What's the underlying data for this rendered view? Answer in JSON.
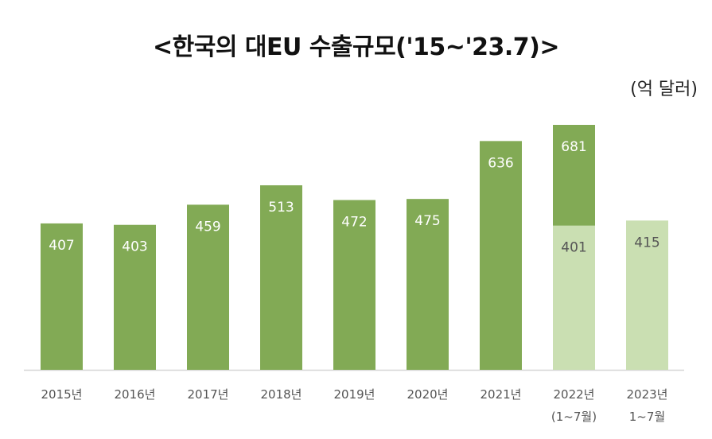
{
  "title": "<한국의  대EU  수출규모('15~'23.7)>",
  "unit": "(억 달러)",
  "colors": {
    "primary": "#82aa55",
    "light": "#cadfb2",
    "axis": "#d6d6d6",
    "label_on_dark": "#ffffff",
    "label_on_light": "#555555",
    "tick_text": "#555555"
  },
  "chart_data": {
    "type": "bar",
    "categories": [
      [
        "2015년"
      ],
      [
        "2016년"
      ],
      [
        "2017년"
      ],
      [
        "2018년"
      ],
      [
        "2019년"
      ],
      [
        "2020년"
      ],
      [
        "2021년"
      ],
      [
        "2022년",
        "(1~7월)"
      ],
      [
        "2023년",
        "1~7월"
      ]
    ],
    "values": [
      407,
      403,
      459,
      513,
      472,
      475,
      636,
      681,
      415
    ],
    "overlay": {
      "category_index": 7,
      "value": 401,
      "color": "light"
    },
    "bar_colors": [
      "primary",
      "primary",
      "primary",
      "primary",
      "primary",
      "primary",
      "primary",
      "primary",
      "light"
    ],
    "ylim": [
      0,
      681
    ],
    "grid": false,
    "legend": "none",
    "xlabel": "",
    "ylabel": ""
  }
}
